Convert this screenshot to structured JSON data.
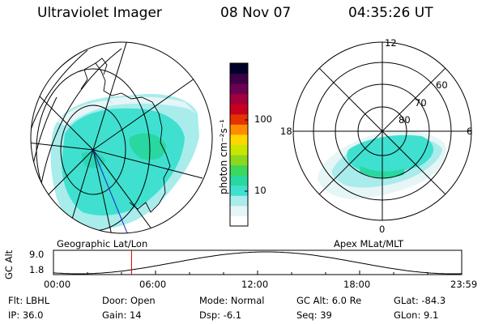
{
  "header": {
    "instrument": "Ultraviolet Imager",
    "date": "08 Nov 07",
    "time": "04:35:26 UT"
  },
  "colorbar": {
    "unit_label": "photon cm⁻²s⁻¹",
    "ticks": [
      {
        "label": "100",
        "value": 100
      },
      {
        "label": "10",
        "value": 10
      }
    ],
    "colors": [
      "#ffffff",
      "#e6f5f5",
      "#a8ecec",
      "#40e0d0",
      "#28d8a0",
      "#3cd85a",
      "#8cd81e",
      "#c8e600",
      "#ffd700",
      "#ff8c00",
      "#e63200",
      "#c8001e",
      "#a0003c",
      "#6e0050",
      "#3c0046",
      "#000028"
    ]
  },
  "geo_panel": {
    "label": "Geographic Lat/Lon"
  },
  "polar_panel": {
    "label": "Apex MLat/MLT",
    "lat_rings": [
      "80",
      "70",
      "60"
    ],
    "mlt_labels": {
      "top": "12",
      "left": "18",
      "right": "6",
      "bottom": "0"
    }
  },
  "altitude_plot": {
    "axis_label": "GC Alt",
    "y_ticks": [
      "9.0",
      "1.8"
    ],
    "x_ticks": [
      "00:00",
      "06:00",
      "12:00",
      "18:00",
      "23:59"
    ],
    "current_time_hours": 4.59,
    "marker_color": "#c80000"
  },
  "status": {
    "row1": [
      {
        "key": "Flt:",
        "value": "LBHL"
      },
      {
        "key": "Door:",
        "value": "Open"
      },
      {
        "key": "Mode:",
        "value": "Normal"
      },
      {
        "key": "GC Alt:",
        "value": "6.0 Re"
      },
      {
        "key": "GLat:",
        "value": "-84.3"
      }
    ],
    "row2": [
      {
        "key": "IP:",
        "value": "36.0"
      },
      {
        "key": "Gain:",
        "value": "14"
      },
      {
        "key": "Dsp:",
        "value": "-6.1"
      },
      {
        "key": "Seq:",
        "value": "39"
      },
      {
        "key": "GLon:",
        "value": "9.1"
      }
    ]
  }
}
